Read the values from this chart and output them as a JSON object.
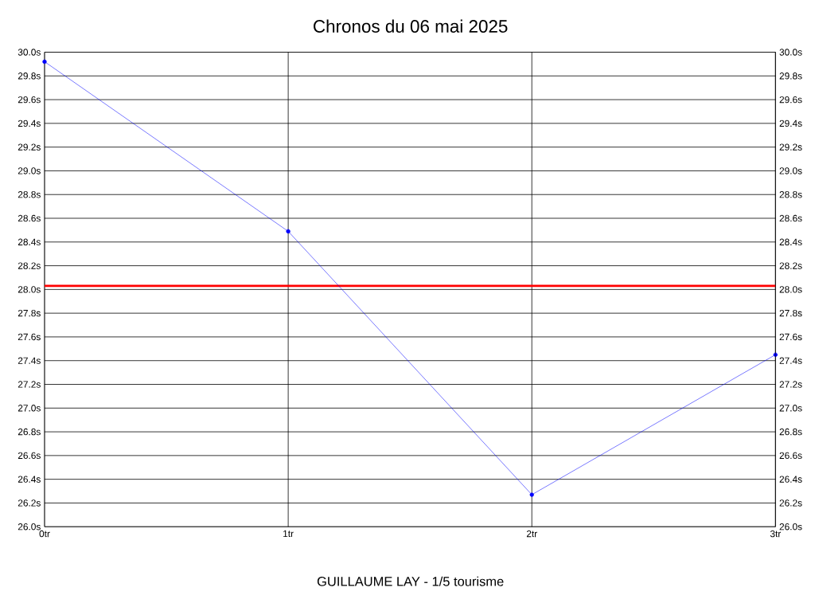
{
  "chart_data": {
    "type": "line",
    "title": "Chronos du 06 mai 2025",
    "x": [
      0,
      1,
      2,
      3
    ],
    "series": [
      {
        "color": "#0000ff",
        "values": [
          29.92,
          28.49,
          26.27,
          27.45
        ]
      }
    ],
    "xlim": [
      0,
      3
    ],
    "xticks": [
      {
        "value": 0,
        "label": "0tr"
      },
      {
        "value": 1,
        "label": "1tr"
      },
      {
        "value": 2,
        "label": "2tr"
      },
      {
        "value": 3,
        "label": "3tr"
      }
    ],
    "ylim": [
      26.0,
      30.0
    ],
    "yticks": [
      {
        "value": 26.0,
        "label": "26.0s"
      },
      {
        "value": 26.2,
        "label": "26.2s"
      },
      {
        "value": 26.4,
        "label": "26.4s"
      },
      {
        "value": 26.6,
        "label": "26.6s"
      },
      {
        "value": 26.8,
        "label": "26.8s"
      },
      {
        "value": 27.0,
        "label": "27.0s"
      },
      {
        "value": 27.2,
        "label": "27.2s"
      },
      {
        "value": 27.4,
        "label": "27.4s"
      },
      {
        "value": 27.6,
        "label": "27.6s"
      },
      {
        "value": 27.8,
        "label": "27.8s"
      },
      {
        "value": 28.0,
        "label": "28.0s"
      },
      {
        "value": 28.2,
        "label": "28.2s"
      },
      {
        "value": 28.4,
        "label": "28.4s"
      },
      {
        "value": 28.6,
        "label": "28.6s"
      },
      {
        "value": 28.8,
        "label": "28.8s"
      },
      {
        "value": 29.0,
        "label": "29.0s"
      },
      {
        "value": 29.2,
        "label": "29.2s"
      },
      {
        "value": 29.4,
        "label": "29.4s"
      },
      {
        "value": 29.6,
        "label": "29.6s"
      },
      {
        "value": 29.8,
        "label": "29.8s"
      },
      {
        "value": 30.0,
        "label": "30.0s"
      }
    ],
    "y2lim": [
      26.0,
      30.0
    ],
    "y2ticks": [
      {
        "value": 26.0,
        "label": "26.0s"
      },
      {
        "value": 26.2,
        "label": "26.2s"
      },
      {
        "value": 26.4,
        "label": "26.4s"
      },
      {
        "value": 26.6,
        "label": "26.6s"
      },
      {
        "value": 26.8,
        "label": "26.8s"
      },
      {
        "value": 27.0,
        "label": "27.0s"
      },
      {
        "value": 27.2,
        "label": "27.2s"
      },
      {
        "value": 27.4,
        "label": "27.4s"
      },
      {
        "value": 27.6,
        "label": "27.6s"
      },
      {
        "value": 27.8,
        "label": "27.8s"
      },
      {
        "value": 28.0,
        "label": "28.0s"
      },
      {
        "value": 28.2,
        "label": "28.2s"
      },
      {
        "value": 28.4,
        "label": "28.4s"
      },
      {
        "value": 28.6,
        "label": "28.6s"
      },
      {
        "value": 28.8,
        "label": "28.8s"
      },
      {
        "value": 29.0,
        "label": "29.0s"
      },
      {
        "value": 29.2,
        "label": "29.2s"
      },
      {
        "value": 29.4,
        "label": "29.4s"
      },
      {
        "value": 29.6,
        "label": "29.6s"
      },
      {
        "value": 29.8,
        "label": "29.8s"
      },
      {
        "value": 30.0,
        "label": "30.0s"
      }
    ],
    "ref_lines": [
      {
        "axis": "y",
        "value": 28.03,
        "color": "#ff0000"
      }
    ],
    "annotations": [
      "GUILLAUME LAY - 1/5 tourisme"
    ],
    "grid": true,
    "marker": "circle",
    "line_style": "solid"
  }
}
